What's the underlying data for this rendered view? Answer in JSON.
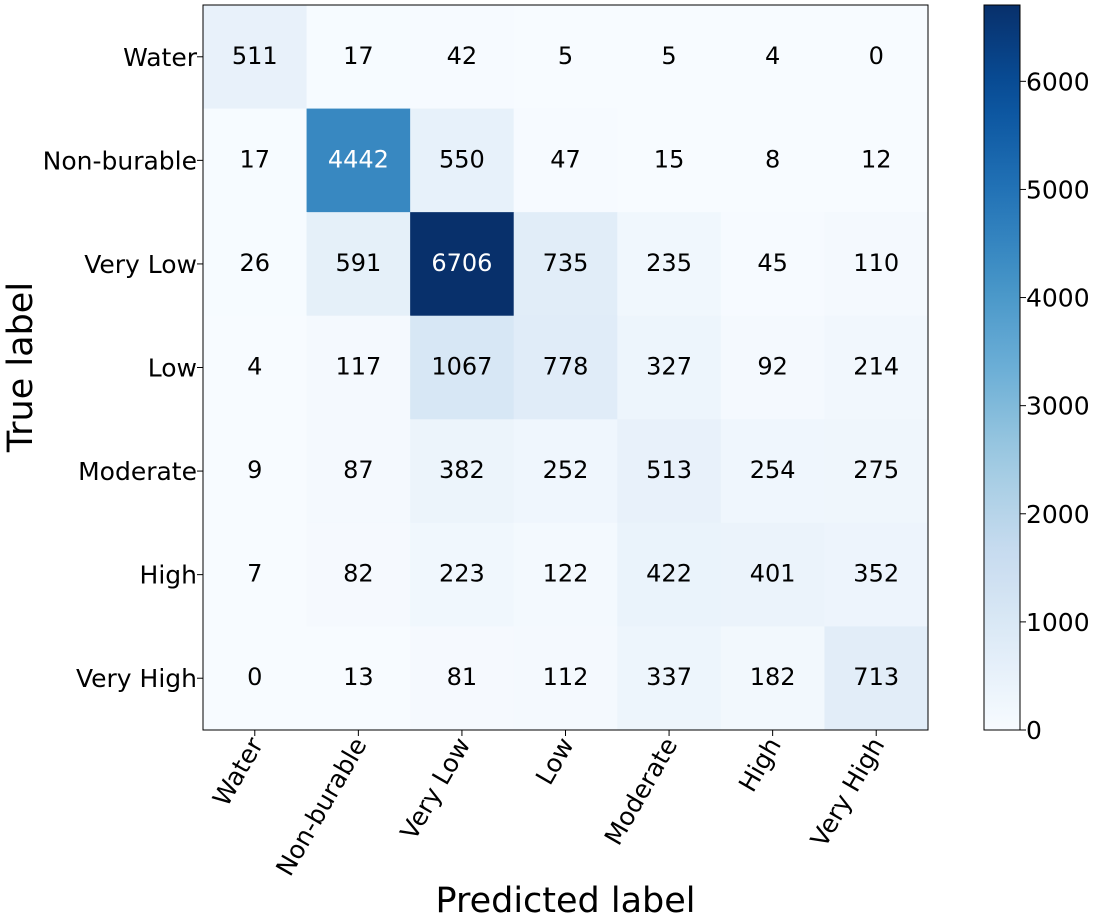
{
  "chart_data": {
    "type": "heatmap",
    "title": "",
    "xlabel": "Predicted label",
    "ylabel": "True label",
    "x_categories": [
      "Water",
      "Non-burable",
      "Very Low",
      "Low",
      "Moderate",
      "High",
      "Very High"
    ],
    "y_categories": [
      "Water",
      "Non-burable",
      "Very Low",
      "Low",
      "Moderate",
      "High",
      "Very High"
    ],
    "matrix": [
      [
        511,
        17,
        42,
        5,
        5,
        4,
        0
      ],
      [
        17,
        4442,
        550,
        47,
        15,
        8,
        12
      ],
      [
        26,
        591,
        6706,
        735,
        235,
        45,
        110
      ],
      [
        4,
        117,
        1067,
        778,
        327,
        92,
        214
      ],
      [
        9,
        87,
        382,
        252,
        513,
        254,
        275
      ],
      [
        7,
        82,
        223,
        122,
        422,
        401,
        352
      ],
      [
        0,
        13,
        81,
        112,
        337,
        182,
        713
      ]
    ],
    "colormap": "Blues",
    "colorbar": {
      "range": [
        0,
        6706
      ],
      "ticks": [
        0,
        1000,
        2000,
        3000,
        4000,
        5000,
        6000
      ]
    },
    "text_colors": {
      "dark": "#000000",
      "light": "#ffffff"
    }
  }
}
